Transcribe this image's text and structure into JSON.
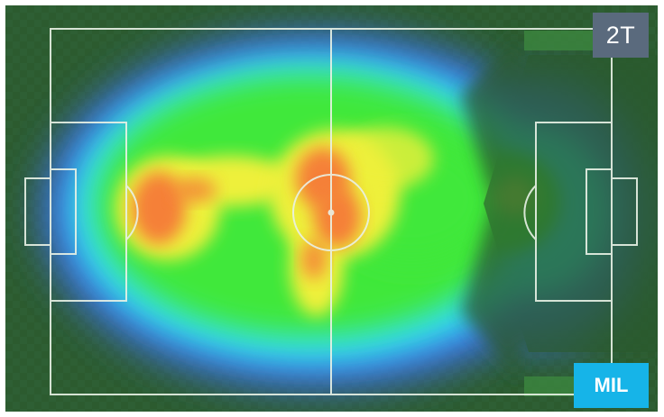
{
  "heatmap": {
    "half_label": "2T",
    "role_label": "MIL",
    "colors": {
      "pitch_dark": "#2c5a2f",
      "pitch_light": "#336b36",
      "line": "#e9f2e6",
      "half_badge_bg": "#5a6a7d",
      "role_badge_bg": "#16b4e8",
      "heat_low": "#3f6ef0",
      "heat_mid_low": "#33e0f0",
      "heat_mid": "#3fe83a",
      "heat_mid_high": "#eef03a",
      "heat_high": "#f58038"
    },
    "icons": {
      "attack_direction": "arrow-right-icon"
    }
  }
}
